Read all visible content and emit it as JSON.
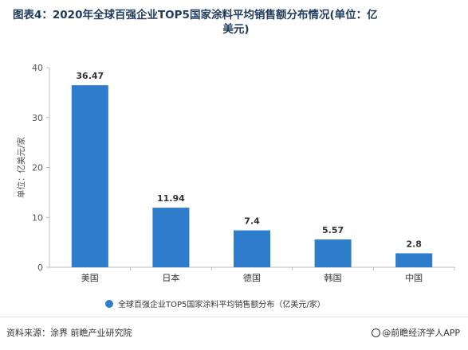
{
  "title_line1": "图表4：2020年全球百强企业TOP5国家涂料平均销售额分布情况(单位：亿",
  "title_line2": "美元)",
  "source": "资料来源：涂界 前瞻产业研究院",
  "brand": "@前瞻经济学人APP",
  "legend_label": "全球百强企业TOP5国家涂料平均销售额分布（亿美元/家）",
  "bar_color": "#2e7ccc",
  "chart_data": {
    "type": "bar",
    "categories": [
      "美国",
      "日本",
      "德国",
      "韩国",
      "中国"
    ],
    "values": [
      36.47,
      11.94,
      7.4,
      5.57,
      2.8
    ],
    "value_labels": [
      "36.47",
      "11.94",
      "7.4",
      "5.57",
      "2.8"
    ],
    "ylabel": "单位：亿美元/家",
    "ylim": [
      0,
      40
    ],
    "yticks": [
      0,
      10,
      20,
      30,
      40
    ],
    "series": [
      {
        "name": "全球百强企业TOP5国家涂料平均销售额分布（亿美元/家）",
        "values": [
          36.47,
          11.94,
          7.4,
          5.57,
          2.8
        ]
      }
    ],
    "legend": "bottom",
    "grid": false
  }
}
